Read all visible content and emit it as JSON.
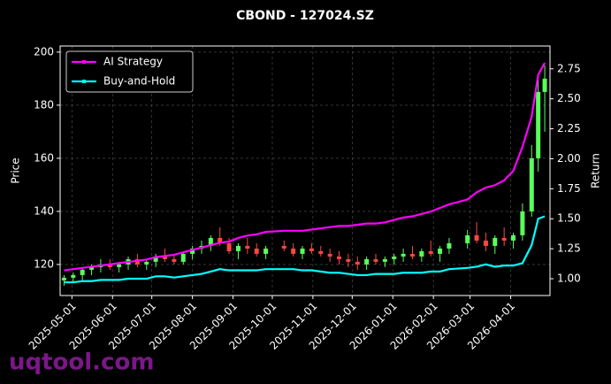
{
  "chart_data": {
    "type": "candlestick",
    "title": "CBOND - 127024.SZ",
    "y_label": "Price",
    "y2_label": "Return",
    "watermark": "uqtool.com",
    "legend": "upper left",
    "grid": true,
    "up_color": "#5aff5a",
    "down_color": "#ff4646",
    "x": [
      "2025-04-25",
      "2025-05-02",
      "2025-05-09",
      "2025-05-16",
      "2025-05-23",
      "2025-05-30",
      "2025-06-06",
      "2025-06-13",
      "2025-06-20",
      "2025-06-27",
      "2025-07-04",
      "2025-07-11",
      "2025-07-18",
      "2025-07-25",
      "2025-08-01",
      "2025-08-08",
      "2025-08-15",
      "2025-08-22",
      "2025-08-29",
      "2025-09-05",
      "2025-09-12",
      "2025-09-19",
      "2025-09-26",
      "2025-10-10",
      "2025-10-17",
      "2025-10-24",
      "2025-10-31",
      "2025-11-07",
      "2025-11-14",
      "2025-11-21",
      "2025-11-28",
      "2025-12-05",
      "2025-12-12",
      "2025-12-19",
      "2025-12-26",
      "2026-01-02",
      "2026-01-09",
      "2026-01-16",
      "2026-01-23",
      "2026-01-30",
      "2026-02-06",
      "2026-02-13",
      "2026-02-27",
      "2026-03-06",
      "2026-03-13",
      "2026-03-20",
      "2026-03-27",
      "2026-04-03",
      "2026-04-10",
      "2026-04-17",
      "2026-04-22",
      "2026-04-27"
    ],
    "open": [
      114,
      115,
      116,
      118,
      119,
      120,
      119,
      120,
      122,
      120,
      121,
      123,
      122,
      121,
      124,
      126,
      127,
      130,
      128,
      125,
      127,
      126,
      124,
      127,
      126,
      124,
      126,
      125,
      124,
      123,
      122,
      121,
      120,
      122,
      121,
      122,
      123,
      124,
      123,
      125,
      124,
      126,
      128,
      131,
      129,
      127,
      130,
      129,
      131,
      140,
      160,
      185
    ],
    "high": [
      116,
      117,
      119,
      120,
      122,
      122,
      121,
      123,
      124,
      122,
      124,
      126,
      124,
      125,
      127,
      129,
      131,
      134,
      130,
      128,
      130,
      128,
      127,
      129,
      128,
      127,
      128,
      127,
      126,
      125,
      124,
      123,
      123,
      124,
      123,
      124,
      126,
      127,
      126,
      129,
      127,
      130,
      133,
      136,
      132,
      131,
      134,
      132,
      143,
      165,
      190,
      195
    ],
    "low": [
      112,
      113,
      114,
      116,
      117,
      118,
      117,
      118,
      119,
      118,
      119,
      121,
      120,
      120,
      122,
      124,
      125,
      127,
      124,
      122,
      124,
      123,
      122,
      125,
      123,
      122,
      124,
      123,
      121,
      120,
      119,
      118,
      118,
      120,
      119,
      120,
      121,
      122,
      121,
      123,
      121,
      124,
      126,
      128,
      125,
      124,
      127,
      126,
      129,
      138,
      155,
      170
    ],
    "close": [
      115,
      116,
      118,
      119,
      120,
      119,
      120,
      122,
      120,
      121,
      123,
      122,
      121,
      124,
      126,
      127,
      130,
      128,
      125,
      127,
      126,
      124,
      126,
      126,
      124,
      126,
      125,
      124,
      123,
      122,
      121,
      120,
      122,
      121,
      122,
      123,
      124,
      123,
      125,
      124,
      126,
      128,
      131,
      129,
      127,
      130,
      129,
      131,
      140,
      160,
      185,
      190
    ],
    "series": [
      {
        "name": "AI Strategy",
        "color": "#ff00ff",
        "axis": "y2",
        "values": [
          1.07,
          1.08,
          1.09,
          1.1,
          1.11,
          1.12,
          1.13,
          1.14,
          1.15,
          1.16,
          1.18,
          1.19,
          1.2,
          1.22,
          1.24,
          1.26,
          1.28,
          1.3,
          1.31,
          1.34,
          1.36,
          1.37,
          1.39,
          1.4,
          1.4,
          1.4,
          1.41,
          1.42,
          1.43,
          1.44,
          1.44,
          1.45,
          1.46,
          1.46,
          1.47,
          1.49,
          1.51,
          1.52,
          1.54,
          1.56,
          1.59,
          1.62,
          1.66,
          1.72,
          1.76,
          1.78,
          1.82,
          1.9,
          2.1,
          2.35,
          2.7,
          2.8
        ]
      },
      {
        "name": "Buy-and-Hold",
        "color": "#00ffff",
        "axis": "y2",
        "values": [
          0.97,
          0.97,
          0.98,
          0.98,
          0.99,
          0.99,
          0.99,
          1.0,
          1.0,
          1.0,
          1.02,
          1.02,
          1.01,
          1.02,
          1.03,
          1.04,
          1.06,
          1.08,
          1.07,
          1.07,
          1.07,
          1.07,
          1.08,
          1.08,
          1.08,
          1.07,
          1.07,
          1.06,
          1.05,
          1.05,
          1.04,
          1.03,
          1.03,
          1.04,
          1.04,
          1.04,
          1.05,
          1.05,
          1.05,
          1.06,
          1.06,
          1.08,
          1.09,
          1.1,
          1.12,
          1.1,
          1.11,
          1.11,
          1.13,
          1.28,
          1.5,
          1.52
        ]
      }
    ],
    "xlim": [
      "2025-04-22",
      "2026-05-01"
    ],
    "xticks": [
      "2025-05-01",
      "2025-06-01",
      "2025-07-01",
      "2025-08-01",
      "2025-09-01",
      "2025-10-01",
      "2025-11-01",
      "2025-12-01",
      "2026-01-01",
      "2026-02-01",
      "2026-03-01",
      "2026-04-01"
    ],
    "ylim": [
      108.3,
      202.3
    ],
    "yticks": [
      120,
      140,
      160,
      180,
      200
    ],
    "y2lim": [
      0.86,
      2.94
    ],
    "y2ticks": [
      {
        "value": 1.0,
        "label": "1.00"
      },
      {
        "value": 1.25,
        "label": "1.25"
      },
      {
        "value": 1.5,
        "label": "1.50"
      },
      {
        "value": 1.75,
        "label": "1.75"
      },
      {
        "value": 2.0,
        "label": "2.00"
      },
      {
        "value": 2.25,
        "label": "2.25"
      },
      {
        "value": 2.5,
        "label": "2.50"
      },
      {
        "value": 2.75,
        "label": "2.75"
      }
    ]
  }
}
